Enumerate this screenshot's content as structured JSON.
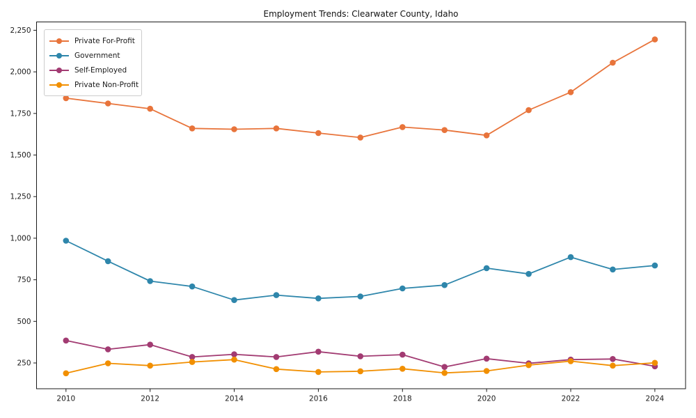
{
  "figure": {
    "background": "#ffffff",
    "axis_color": "#1a1a1a",
    "tick_label_color": "#1a1a1a"
  },
  "chart_data": {
    "type": "line",
    "title": "Employment Trends: Clearwater County, Idaho",
    "xlabel": "",
    "ylabel": "",
    "x": [
      2010,
      2011,
      2012,
      2013,
      2014,
      2015,
      2016,
      2017,
      2018,
      2019,
      2020,
      2021,
      2022,
      2023,
      2024
    ],
    "series": [
      {
        "name": "Private For-Profit",
        "color": "#E8743B",
        "values": [
          1842,
          1810,
          1778,
          1660,
          1655,
          1660,
          1632,
          1605,
          1668,
          1650,
          1618,
          1770,
          1878,
          2055,
          2195
        ]
      },
      {
        "name": "Government",
        "color": "#2E86AB",
        "values": [
          985,
          862,
          742,
          710,
          628,
          658,
          638,
          650,
          698,
          718,
          820,
          785,
          886,
          812,
          836
        ]
      },
      {
        "name": "Self-Employed",
        "color": "#A23B72",
        "values": [
          385,
          332,
          360,
          286,
          302,
          286,
          318,
          290,
          300,
          226,
          276,
          248,
          270,
          274,
          230
        ]
      },
      {
        "name": "Private Non-Profit",
        "color": "#F18F01",
        "values": [
          188,
          248,
          234,
          256,
          270,
          213,
          196,
          200,
          215,
          190,
          202,
          237,
          261,
          234,
          251
        ]
      }
    ],
    "xticks": [
      2010,
      2012,
      2014,
      2016,
      2018,
      2020,
      2022,
      2024
    ],
    "yticks": [
      250,
      500,
      750,
      1000,
      1250,
      1500,
      1750,
      2000,
      2250
    ],
    "xlim": [
      2009.3,
      2024.73
    ],
    "ylim": [
      95,
      2300
    ],
    "grid": false,
    "legend_position": "upper-left",
    "marker": "o"
  }
}
